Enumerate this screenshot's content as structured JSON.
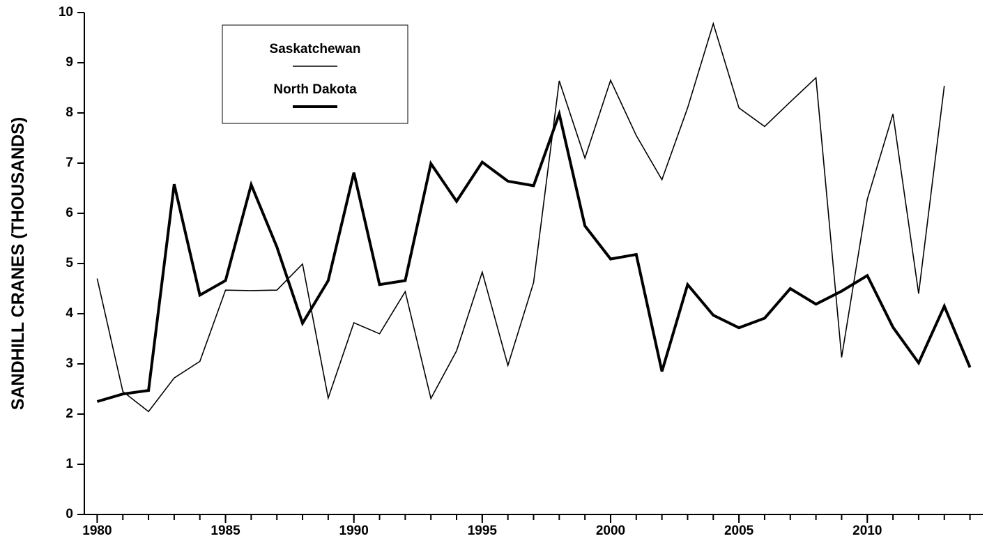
{
  "chart_data": {
    "type": "line",
    "y_label": "SANDHILL CRANES (THOUSANDS)",
    "x": [
      1980,
      1981,
      1982,
      1983,
      1984,
      1985,
      1986,
      1987,
      1988,
      1989,
      1990,
      1991,
      1992,
      1993,
      1994,
      1995,
      1996,
      1997,
      1998,
      1999,
      2000,
      2001,
      2002,
      2003,
      2004,
      2005,
      2006,
      2007,
      2008,
      2009,
      2010,
      2011,
      2012,
      2013,
      2014
    ],
    "series": [
      {
        "name": "Saskatchewan",
        "color": "#000000",
        "line_width": 1.6,
        "values": [
          4.7,
          2.45,
          2.05,
          2.72,
          3.05,
          4.47,
          4.46,
          4.47,
          4.99,
          2.32,
          3.82,
          3.6,
          4.44,
          2.31,
          3.26,
          4.83,
          2.97,
          4.62,
          8.64,
          7.1,
          8.65,
          7.55,
          6.67,
          8.1,
          9.78,
          8.1,
          7.73,
          8.22,
          8.7,
          3.13,
          6.28,
          7.98,
          4.4,
          8.54,
          null
        ]
      },
      {
        "name": "North Dakota",
        "color": "#000000",
        "line_width": 4,
        "values": [
          2.25,
          2.4,
          2.47,
          6.58,
          4.37,
          4.66,
          6.57,
          5.33,
          3.81,
          4.66,
          6.81,
          4.58,
          4.66,
          6.99,
          6.24,
          7.02,
          6.64,
          6.55,
          7.98,
          5.75,
          5.09,
          5.18,
          2.85,
          4.58,
          3.97,
          3.72,
          3.91,
          4.5,
          4.19,
          4.45,
          4.76,
          3.73,
          3.02,
          4.15,
          2.93
        ]
      }
    ],
    "xlim": [
      1979.5,
      2014.5
    ],
    "xticks": [
      1980,
      1985,
      1990,
      1995,
      2000,
      2005,
      2010
    ],
    "ylim": [
      0,
      10
    ],
    "yticks": [
      0,
      1,
      2,
      3,
      4,
      5,
      6,
      7,
      8,
      9,
      10
    ],
    "legend": "upper left"
  }
}
